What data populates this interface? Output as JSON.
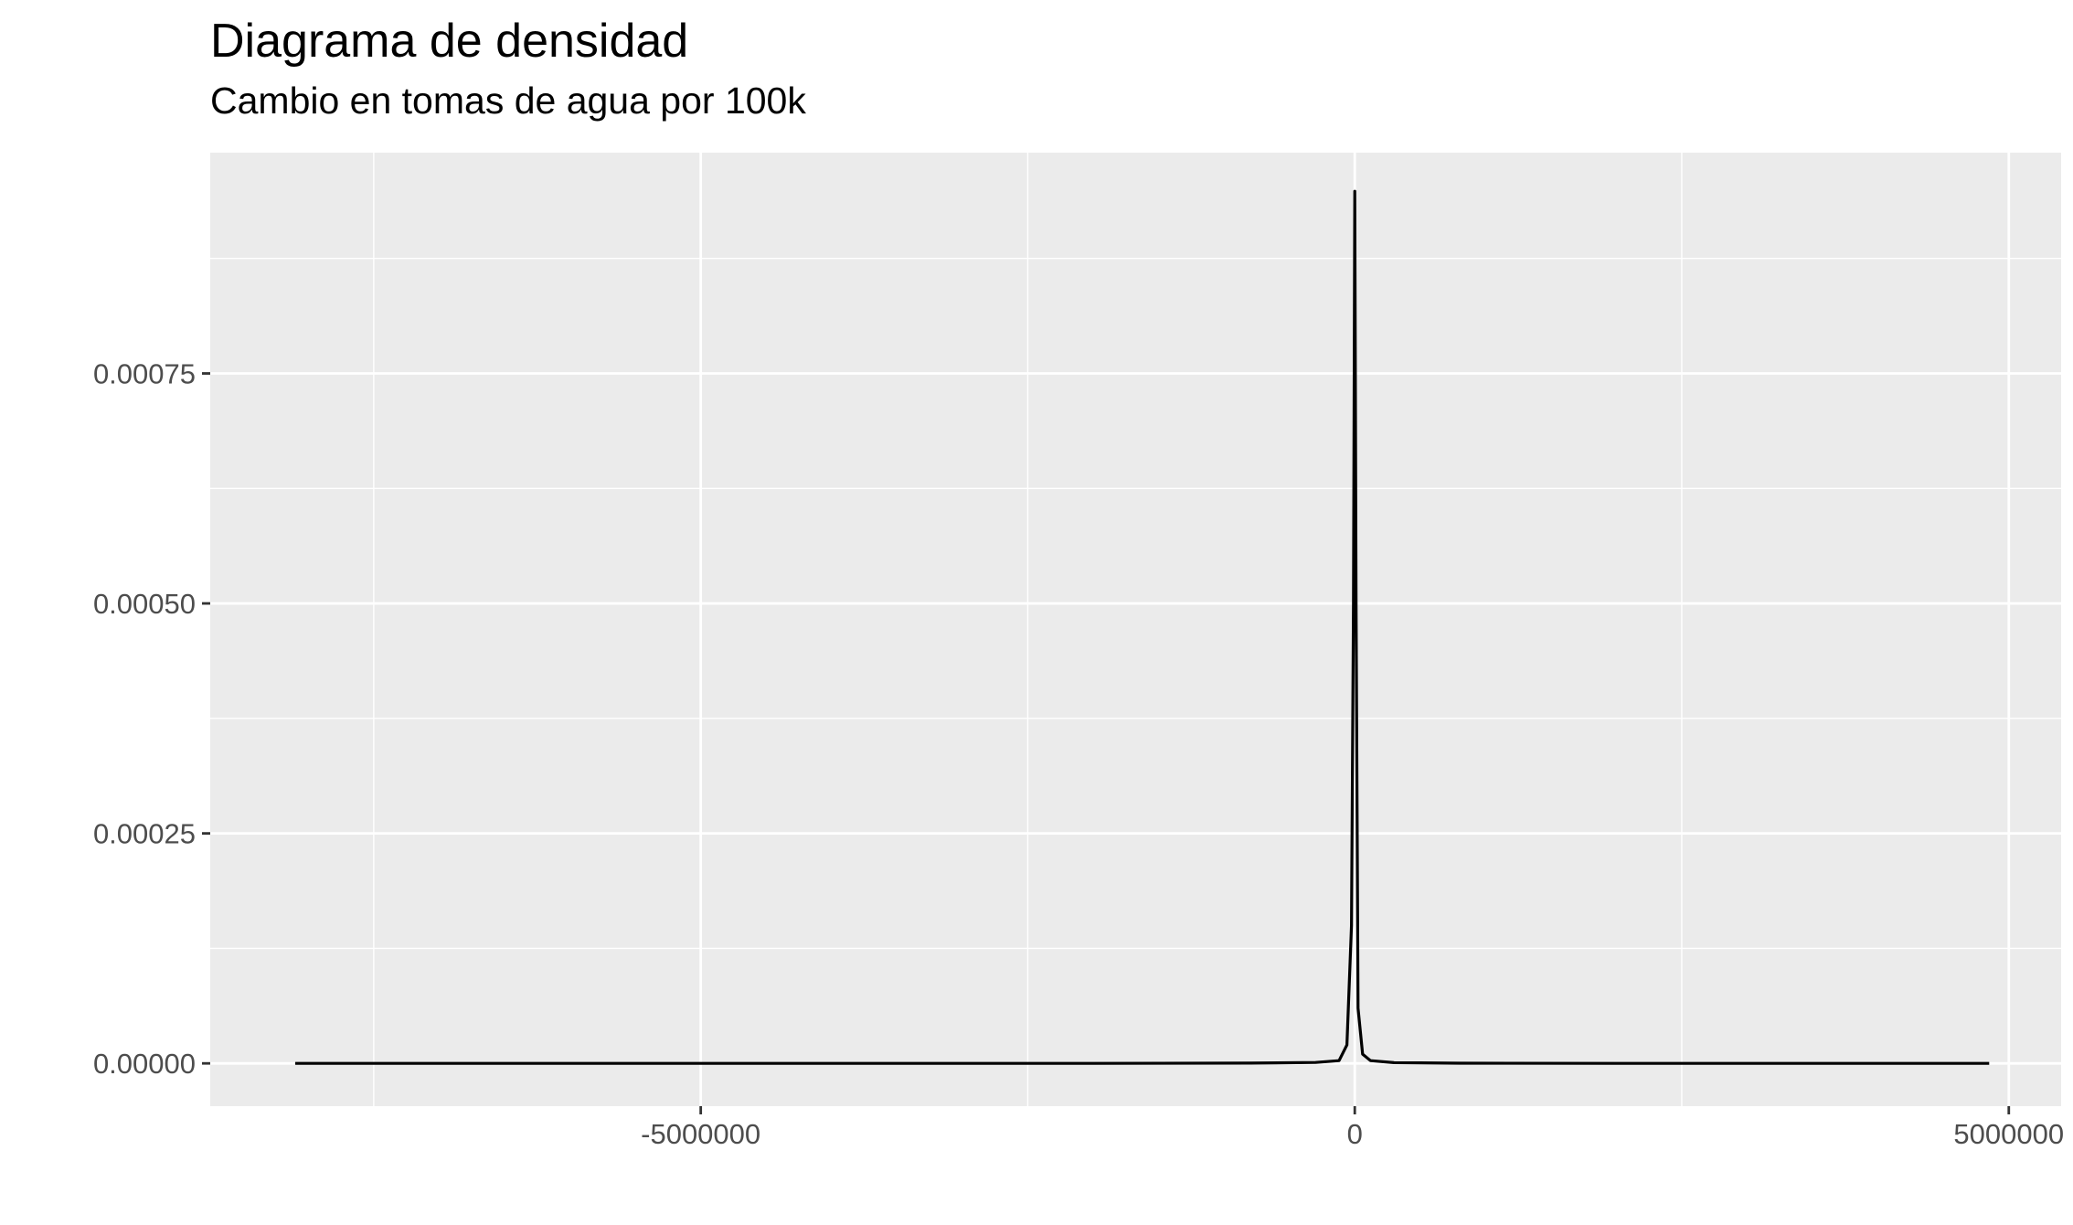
{
  "chart_data": {
    "type": "area",
    "title": "Diagrama de densidad",
    "subtitle": "Cambio en tomas de agua por 100k",
    "xlabel": "",
    "ylabel": "",
    "xlim": [
      -8750000,
      5400000
    ],
    "ylim": [
      -4.65e-05,
      0.00099
    ],
    "x_ticks": [
      {
        "value": -5000000,
        "label": "-5000000"
      },
      {
        "value": 0,
        "label": "0"
      },
      {
        "value": 5000000,
        "label": "5000000"
      }
    ],
    "y_ticks": [
      {
        "value": 0,
        "label": "0.00000"
      },
      {
        "value": 0.00025,
        "label": "0.00025"
      },
      {
        "value": 0.0005,
        "label": "0.00050"
      },
      {
        "value": 0.00075,
        "label": "0.00075"
      }
    ],
    "grid": true,
    "series": [
      {
        "x": [
          -8100000,
          -2000000,
          -800000,
          -300000,
          -120000,
          -60000,
          -25000,
          -10000,
          0,
          10000,
          25000,
          60000,
          120000,
          300000,
          800000,
          2000000,
          4850000
        ],
        "y": [
          0,
          0,
          3e-07,
          1e-06,
          3e-06,
          2e-05,
          0.00015,
          0.0005,
          0.000948,
          0.0005,
          6e-05,
          1e-05,
          3e-06,
          8e-07,
          2e-07,
          0,
          0
        ]
      }
    ]
  }
}
